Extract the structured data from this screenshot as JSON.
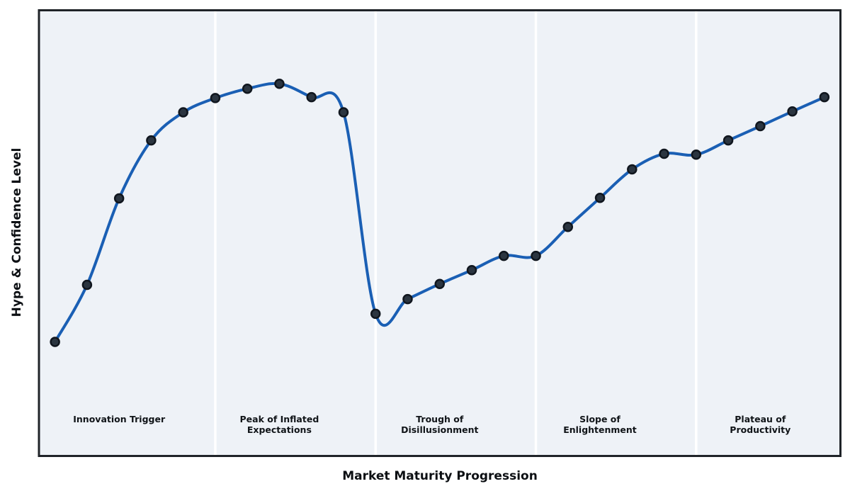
{
  "chart_data": {
    "type": "line",
    "title": "",
    "xlabel": "Market Maturity Progression",
    "ylabel": "Hype & Confidence Level",
    "x": [
      0,
      1,
      2,
      3,
      4,
      5,
      6,
      7,
      8,
      9,
      10,
      11,
      12,
      13,
      14,
      15,
      16,
      17,
      18,
      19,
      20,
      21,
      22,
      23,
      24
    ],
    "values": [
      25.6,
      38.4,
      57.8,
      70.8,
      77.1,
      80.3,
      82.4,
      83.5,
      80.5,
      77.1,
      31.9,
      35.2,
      38.6,
      41.7,
      44.9,
      44.9,
      51.4,
      57.9,
      64.3,
      67.8,
      67.6,
      70.8,
      74.0,
      77.3,
      80.5
    ],
    "xlim": [
      -0.5,
      24.5
    ],
    "ylim": [
      0,
      100
    ],
    "grid": false,
    "legend": "none",
    "x_ticks": "none",
    "y_ticks": "none",
    "smoothing": "cubic-spline",
    "line_color": "#1a5fb4",
    "line_width": 4,
    "marker_color": "#2b3540",
    "marker_edge_color": "#10161e",
    "plot_bg_color": "#eef2f7",
    "frame_color": "#1f2328",
    "divider_color": "#ffffff",
    "phase_boundaries_x": [
      5,
      10,
      15,
      20
    ],
    "phases": [
      {
        "label": "Innovation Trigger",
        "center_x": 2
      },
      {
        "label": "Peak of Inflated\nExpectations",
        "center_x": 7
      },
      {
        "label": "Trough of\nDisillusionment",
        "center_x": 12
      },
      {
        "label": "Slope of\nEnlightenment",
        "center_x": 17
      },
      {
        "label": "Plateau of\nProductivity",
        "center_x": 22
      }
    ]
  }
}
